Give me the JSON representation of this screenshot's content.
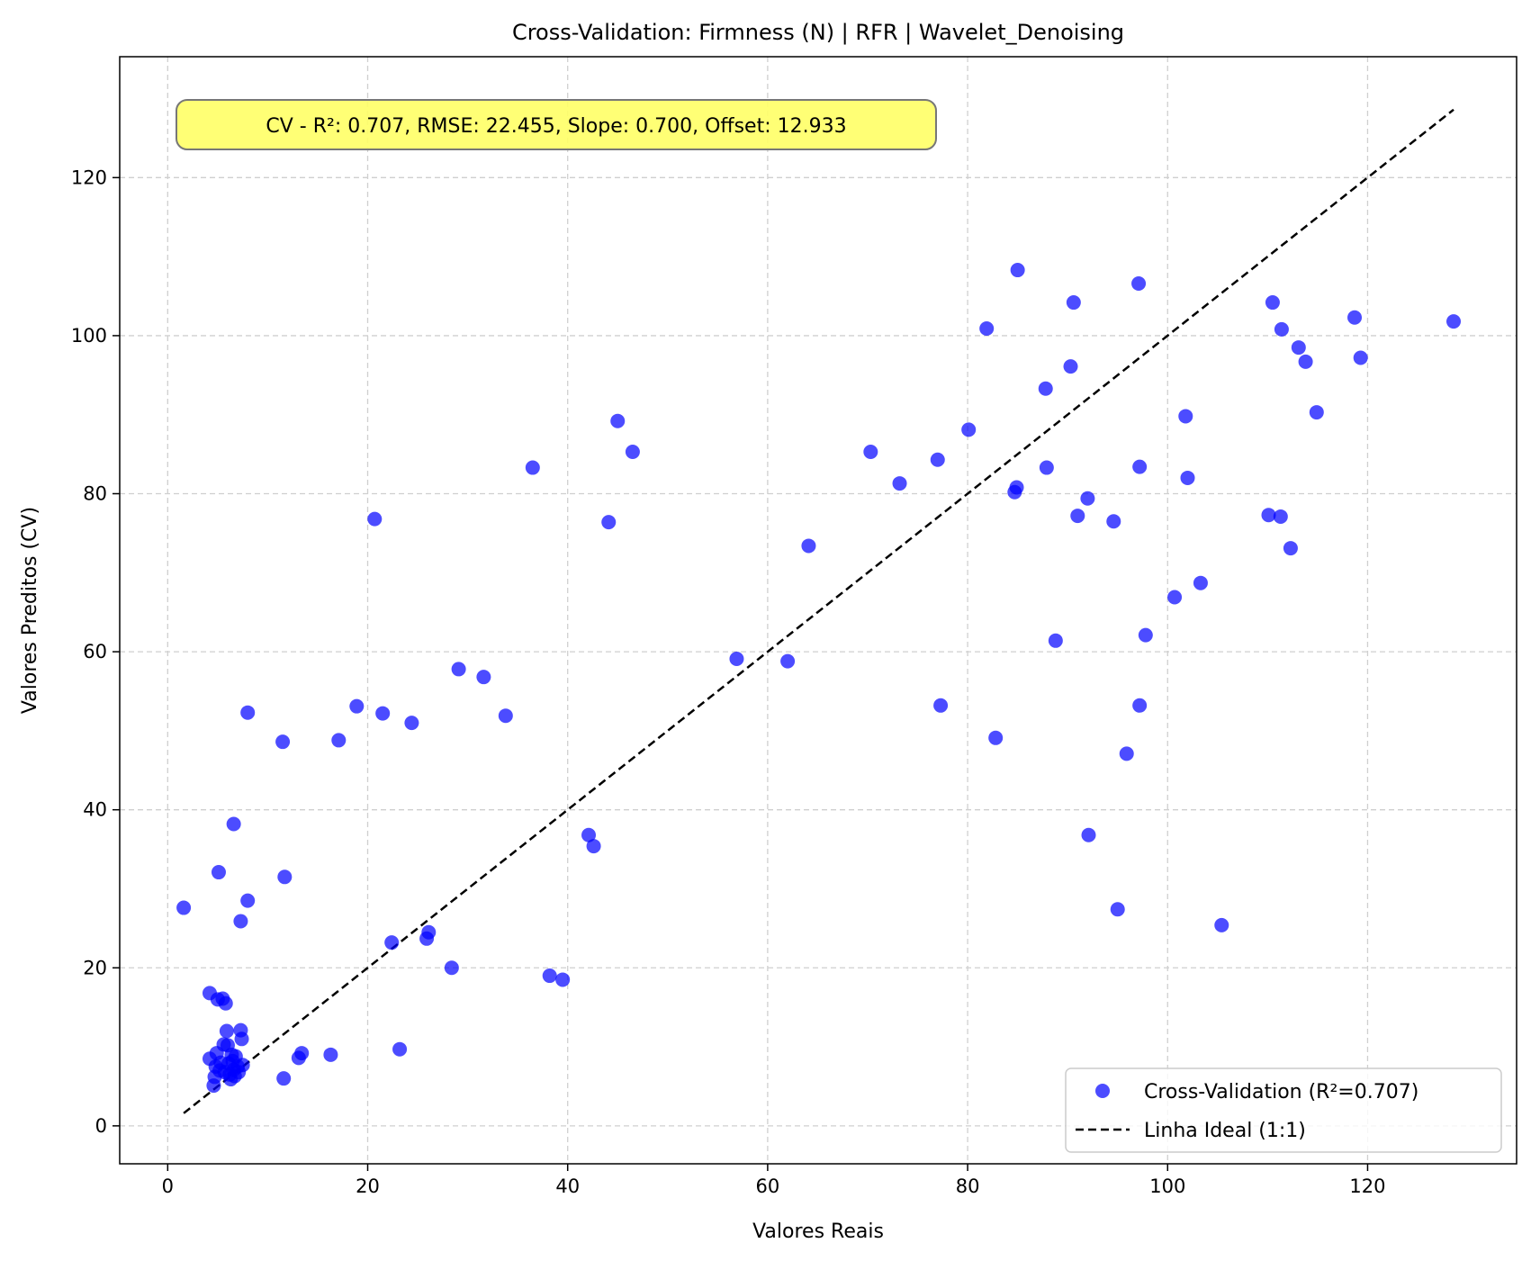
{
  "chart_data": {
    "type": "scatter",
    "title": "Cross-Validation: Firmness (N) | RFR | Wavelet_Denoising",
    "xlabel": "Valores Reais",
    "ylabel": "Valores Preditos (CV)",
    "xlim": [
      -4.8,
      134.9
    ],
    "ylim": [
      -4.8,
      135.3
    ],
    "xticks": [
      0,
      20,
      40,
      60,
      80,
      100,
      120
    ],
    "yticks": [
      0,
      20,
      40,
      60,
      80,
      100,
      120
    ],
    "grid": true,
    "legend_position": "lower-right",
    "annotation": "CV - R²: 0.707, RMSE: 22.455, Slope: 0.700, Offset: 12.933",
    "annotation_color": "#ffff66",
    "series": [
      {
        "name": "Cross-Validation (R²=0.707)",
        "kind": "scatter",
        "color": "#0000ff",
        "points": [
          [
            1.6,
            27.6
          ],
          [
            4.2,
            16.8
          ],
          [
            5.1,
            32.1
          ],
          [
            6.6,
            38.2
          ],
          [
            7.3,
            25.9
          ],
          [
            8.0,
            28.5
          ],
          [
            8.0,
            52.3
          ],
          [
            11.5,
            48.6
          ],
          [
            11.7,
            31.5
          ],
          [
            11.6,
            6.0
          ],
          [
            13.1,
            8.6
          ],
          [
            13.4,
            9.2
          ],
          [
            16.3,
            9.0
          ],
          [
            17.1,
            48.8
          ],
          [
            18.9,
            53.1
          ],
          [
            20.7,
            76.8
          ],
          [
            21.5,
            52.2
          ],
          [
            22.4,
            23.2
          ],
          [
            23.2,
            9.7
          ],
          [
            24.4,
            51.0
          ],
          [
            25.9,
            23.7
          ],
          [
            26.1,
            24.5
          ],
          [
            28.4,
            20.0
          ],
          [
            29.1,
            57.8
          ],
          [
            31.6,
            56.8
          ],
          [
            33.8,
            51.9
          ],
          [
            36.5,
            83.3
          ],
          [
            38.2,
            19.0
          ],
          [
            39.5,
            18.5
          ],
          [
            42.1,
            36.8
          ],
          [
            42.6,
            35.4
          ],
          [
            44.1,
            76.4
          ],
          [
            45.0,
            89.2
          ],
          [
            46.5,
            85.3
          ],
          [
            56.9,
            59.1
          ],
          [
            62.0,
            58.8
          ],
          [
            64.1,
            73.4
          ],
          [
            70.3,
            85.3
          ],
          [
            73.2,
            81.3
          ],
          [
            77.0,
            84.3
          ],
          [
            77.3,
            53.2
          ],
          [
            80.1,
            88.1
          ],
          [
            81.9,
            100.9
          ],
          [
            82.8,
            49.1
          ],
          [
            84.7,
            80.2
          ],
          [
            84.9,
            80.8
          ],
          [
            85.0,
            108.3
          ],
          [
            87.8,
            93.3
          ],
          [
            87.9,
            83.3
          ],
          [
            88.8,
            61.4
          ],
          [
            90.3,
            96.1
          ],
          [
            90.6,
            104.2
          ],
          [
            91.0,
            77.2
          ],
          [
            92.0,
            79.4
          ],
          [
            92.1,
            36.8
          ],
          [
            94.6,
            76.5
          ],
          [
            95.0,
            27.4
          ],
          [
            95.9,
            47.1
          ],
          [
            97.2,
            53.2
          ],
          [
            97.1,
            106.6
          ],
          [
            97.2,
            83.4
          ],
          [
            97.8,
            62.1
          ],
          [
            100.7,
            66.9
          ],
          [
            101.8,
            89.8
          ],
          [
            102.0,
            82.0
          ],
          [
            103.3,
            68.7
          ],
          [
            105.4,
            25.4
          ],
          [
            110.1,
            77.3
          ],
          [
            110.5,
            104.2
          ],
          [
            111.3,
            77.1
          ],
          [
            111.4,
            100.8
          ],
          [
            112.3,
            73.1
          ],
          [
            113.1,
            98.5
          ],
          [
            113.8,
            96.7
          ],
          [
            114.9,
            90.3
          ],
          [
            118.7,
            102.3
          ],
          [
            119.3,
            97.2
          ],
          [
            128.6,
            101.8
          ],
          [
            4.2,
            8.5
          ],
          [
            4.6,
            5.1
          ],
          [
            4.7,
            6.2
          ],
          [
            4.8,
            7.5
          ],
          [
            4.9,
            9.2
          ],
          [
            5.0,
            16.0
          ],
          [
            5.2,
            7.0
          ],
          [
            5.3,
            8.0
          ],
          [
            5.5,
            16.1
          ],
          [
            5.6,
            10.3
          ],
          [
            5.7,
            6.8
          ],
          [
            5.8,
            15.5
          ],
          [
            5.9,
            12.0
          ],
          [
            6.0,
            10.2
          ],
          [
            6.1,
            7.9
          ],
          [
            6.2,
            6.5
          ],
          [
            6.3,
            5.9
          ],
          [
            6.4,
            9.0
          ],
          [
            6.5,
            8.2
          ],
          [
            6.6,
            7.1
          ],
          [
            6.7,
            6.3
          ],
          [
            6.8,
            8.8
          ],
          [
            7.0,
            7.5
          ],
          [
            7.1,
            6.8
          ],
          [
            7.3,
            12.1
          ],
          [
            7.4,
            11.0
          ],
          [
            7.5,
            7.7
          ]
        ]
      },
      {
        "name": "Linha Ideal (1:1)",
        "kind": "line",
        "color": "#000000",
        "dash": "dashed",
        "x": [
          1.6,
          128.6
        ],
        "y": [
          1.6,
          128.6
        ]
      }
    ]
  }
}
